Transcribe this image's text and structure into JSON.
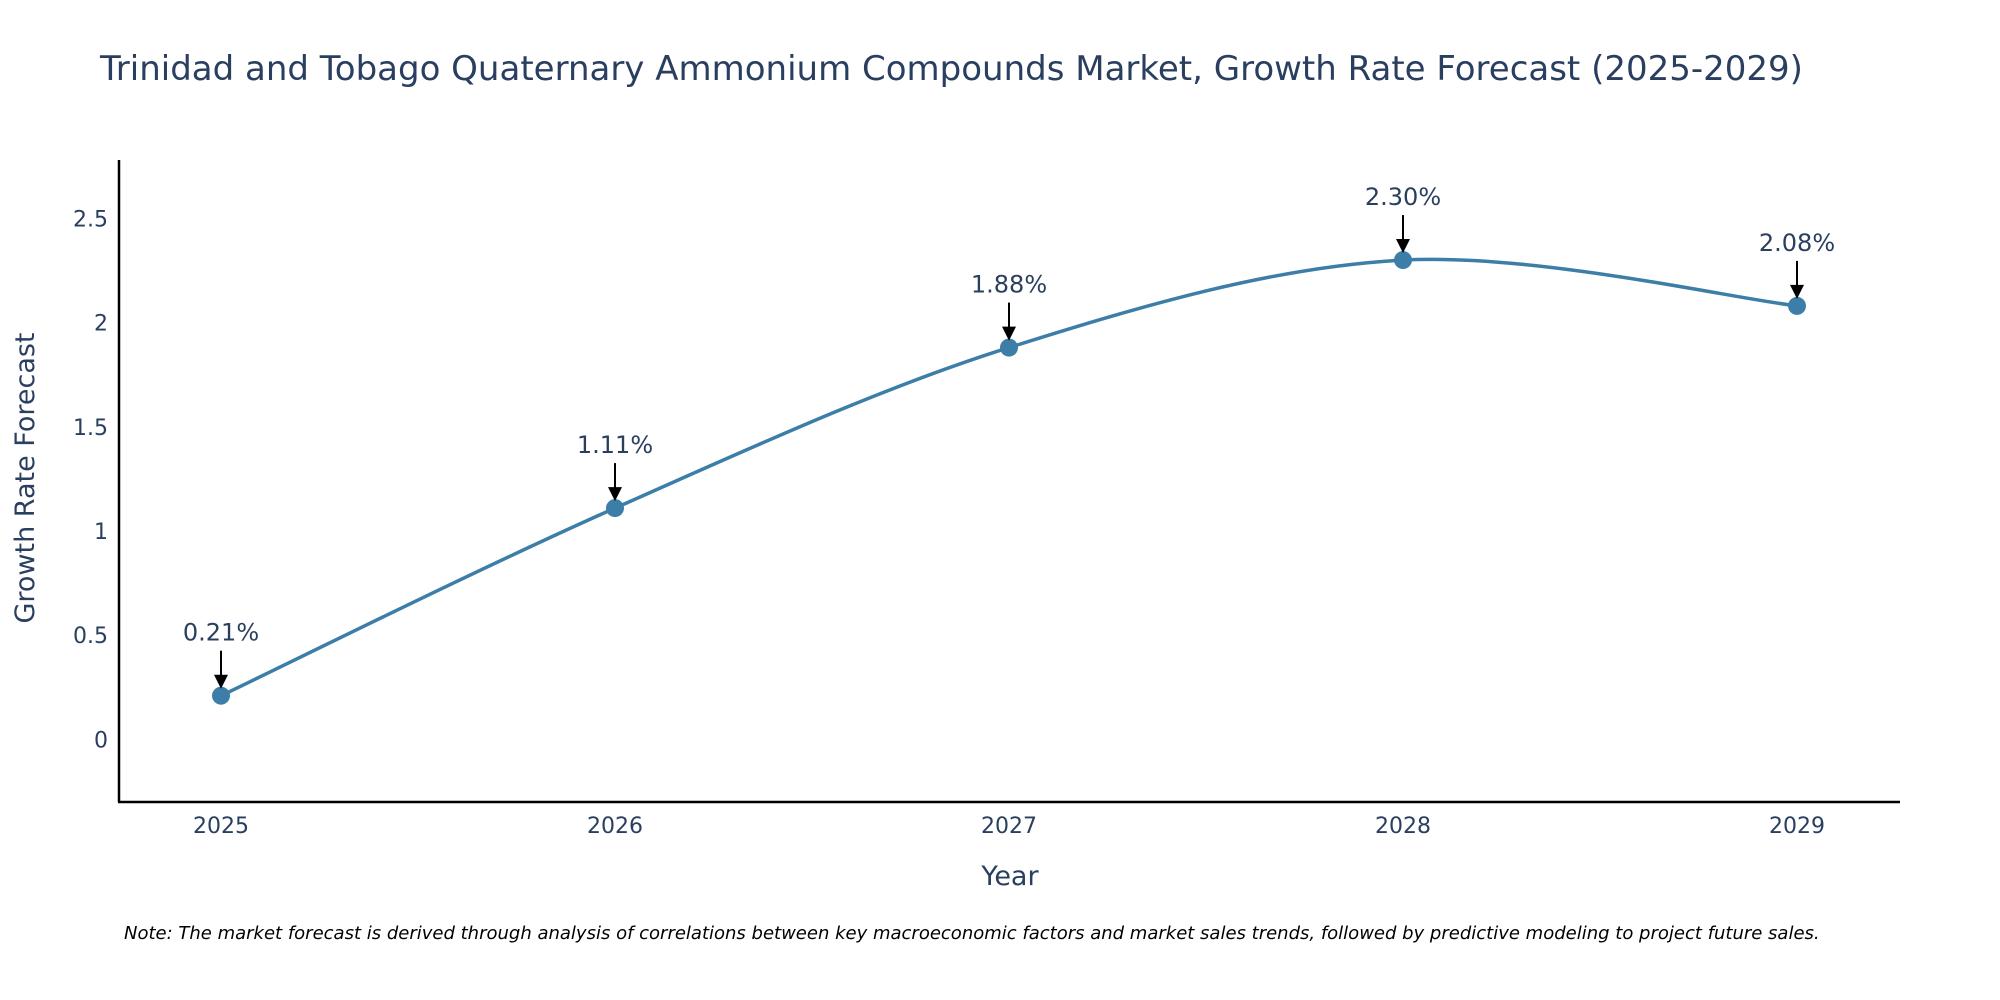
{
  "chart_data": {
    "type": "line",
    "title": "Trinidad and Tobago Quaternary Ammonium Compounds Market, Growth Rate Forecast (2025-2029)",
    "xlabel": "Year",
    "ylabel": "Growth Rate Forecast",
    "categories": [
      "2025",
      "2026",
      "2027",
      "2028",
      "2029"
    ],
    "values": [
      0.21,
      1.11,
      1.88,
      2.3,
      2.08
    ],
    "data_labels": [
      "0.21%",
      "1.11%",
      "1.88%",
      "2.30%",
      "2.08%"
    ],
    "yticks": [
      0,
      0.5,
      1,
      1.5,
      2,
      2.5
    ],
    "ytick_labels": [
      "0",
      "0.5",
      "1",
      "1.5",
      "2",
      "2.5"
    ],
    "ylim": [
      -0.3,
      2.78
    ],
    "grid": false,
    "line_color": "#3d7ea8",
    "marker_color": "#3d7ea8",
    "note": "Note: The market forecast is derived through analysis of correlations between key macroeconomic factors and market sales trends, followed by predictive modeling to project future sales."
  }
}
